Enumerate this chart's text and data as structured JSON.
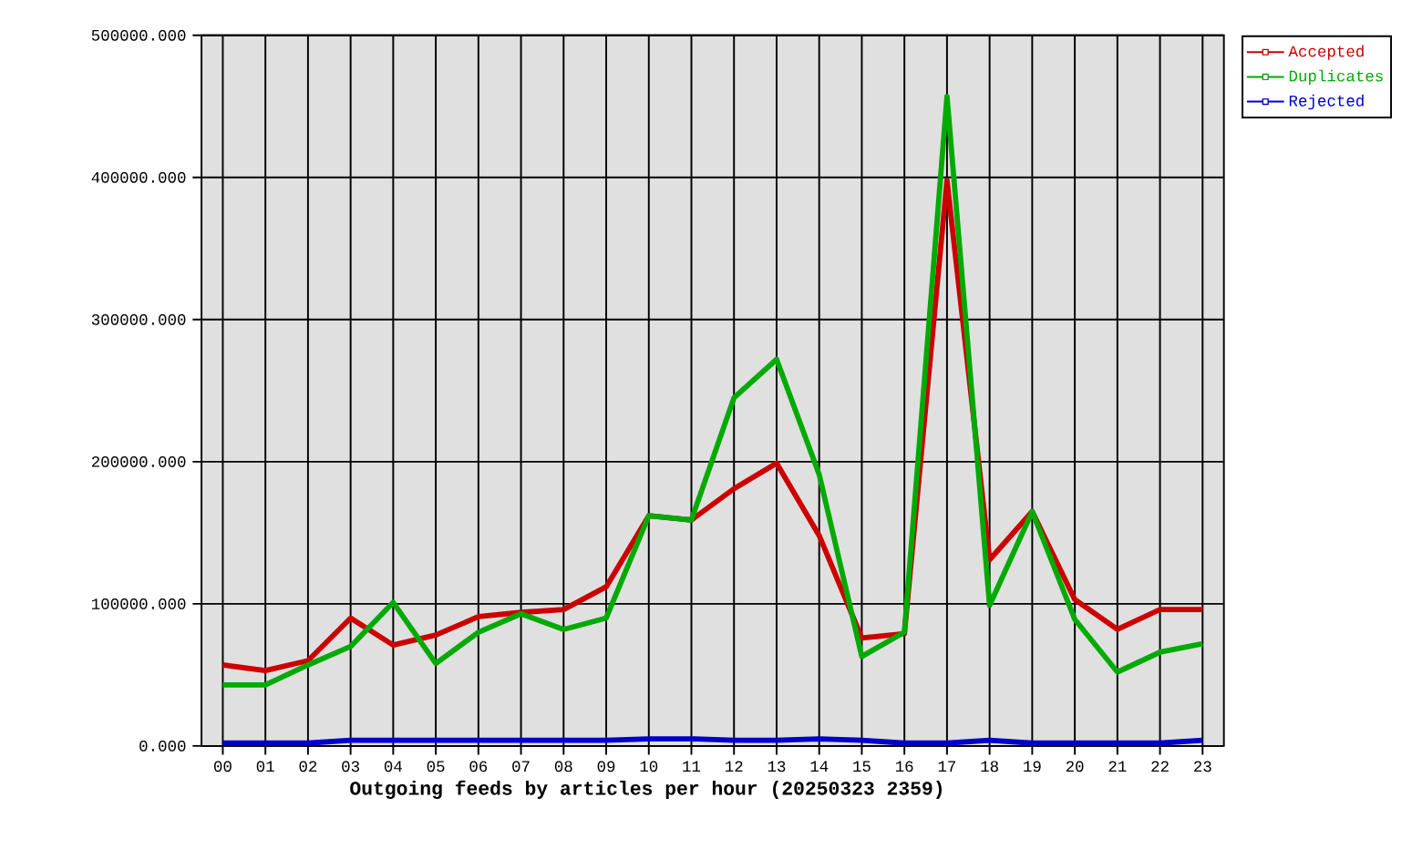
{
  "chart_data": {
    "type": "line",
    "xlabel": "Outgoing feeds by articles per hour (20250323 2359)",
    "categories": [
      "00",
      "01",
      "02",
      "03",
      "04",
      "05",
      "06",
      "07",
      "08",
      "09",
      "10",
      "11",
      "12",
      "13",
      "14",
      "15",
      "16",
      "17",
      "18",
      "19",
      "20",
      "21",
      "22",
      "23"
    ],
    "series": [
      {
        "name": "Accepted",
        "color": "#cc0000",
        "values": [
          57000,
          53000,
          60000,
          90000,
          71000,
          78000,
          91000,
          94000,
          96000,
          112000,
          162000,
          159000,
          181000,
          199000,
          148000,
          76000,
          79000,
          398000,
          131000,
          165000,
          103000,
          82000,
          96000,
          96000
        ]
      },
      {
        "name": "Duplicates",
        "color": "#00aa00",
        "values": [
          43000,
          43000,
          57000,
          70000,
          101000,
          58000,
          80000,
          93000,
          82000,
          90000,
          162000,
          159000,
          245000,
          272000,
          191000,
          63000,
          80000,
          457000,
          99000,
          165000,
          89000,
          52000,
          66000,
          72000
        ]
      },
      {
        "name": "Rejected",
        "color": "#0000cc",
        "values": [
          2000,
          2000,
          2000,
          4000,
          4000,
          4000,
          4000,
          4000,
          4000,
          4000,
          5000,
          5000,
          4000,
          4000,
          5000,
          4000,
          2000,
          2000,
          4000,
          2000,
          2000,
          2000,
          2000,
          4000
        ]
      }
    ],
    "ylim": [
      0,
      500000
    ],
    "yticks": [
      {
        "value": 0,
        "label": "0.000"
      },
      {
        "value": 100000,
        "label": "100000.000"
      },
      {
        "value": 200000,
        "label": "200000.000"
      },
      {
        "value": 300000,
        "label": "300000.000"
      },
      {
        "value": 400000,
        "label": "400000.000"
      },
      {
        "value": 500000,
        "label": "500000.000"
      }
    ],
    "grid": true,
    "legend": "top right"
  }
}
